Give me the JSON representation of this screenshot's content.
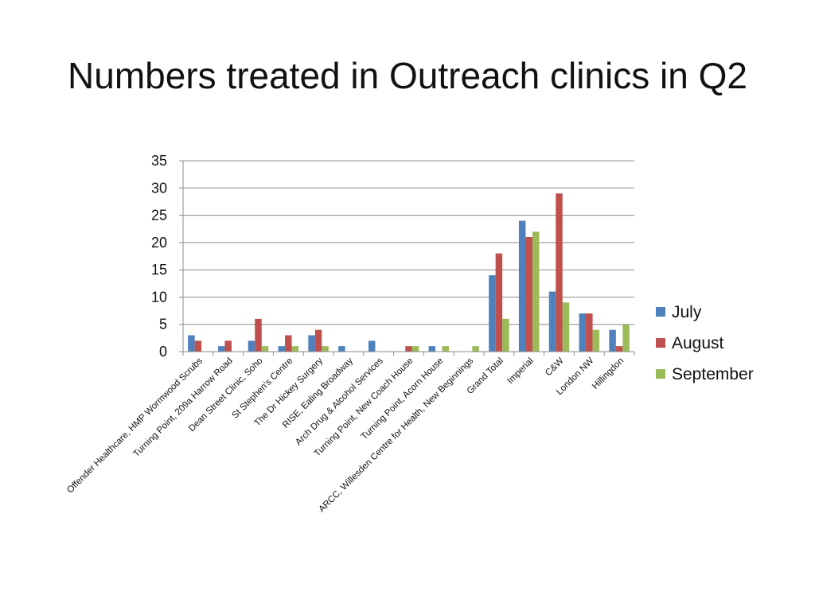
{
  "slide": {
    "title": "Numbers treated in Outreach clinics in Q2"
  },
  "colors": {
    "July": "#4f81bd",
    "August": "#c0504d",
    "September": "#9bbb59",
    "gridline": "#8c8c8c"
  },
  "chart_data": {
    "type": "bar",
    "title": "",
    "xlabel": "",
    "ylabel": "",
    "ylim": [
      0,
      35
    ],
    "yticks": [
      0,
      5,
      10,
      15,
      20,
      25,
      30,
      35
    ],
    "grid": true,
    "legend_position": "right",
    "categories": [
      "Offender Healthcare, HMP Wormwood Scrubs",
      "Turning Point, 209a Harrow Road",
      "Dean Street Clinic, Soho",
      "St Stephen's Centre",
      "The Dr Hickey Surgery",
      "RISE, Ealing Broadway",
      "Arch Drug & Alcohol Services",
      "Turning Point, New Coach House",
      "Turning Point, Acorn House",
      "ARCC, Willesden Centre for Health, New Beginnings",
      "Grand Total",
      "Imperial",
      "C&W",
      "London NW",
      "Hillingdon"
    ],
    "series": [
      {
        "name": "July",
        "values": [
          3,
          1,
          2,
          1,
          3,
          1,
          2,
          0,
          1,
          0,
          14,
          24,
          11,
          7,
          4
        ]
      },
      {
        "name": "August",
        "values": [
          2,
          2,
          6,
          3,
          4,
          0,
          0,
          1,
          0,
          0,
          18,
          21,
          29,
          7,
          1
        ]
      },
      {
        "name": "September",
        "values": [
          0,
          0,
          1,
          1,
          1,
          0,
          0,
          1,
          1,
          1,
          6,
          22,
          9,
          4,
          5
        ]
      }
    ]
  }
}
